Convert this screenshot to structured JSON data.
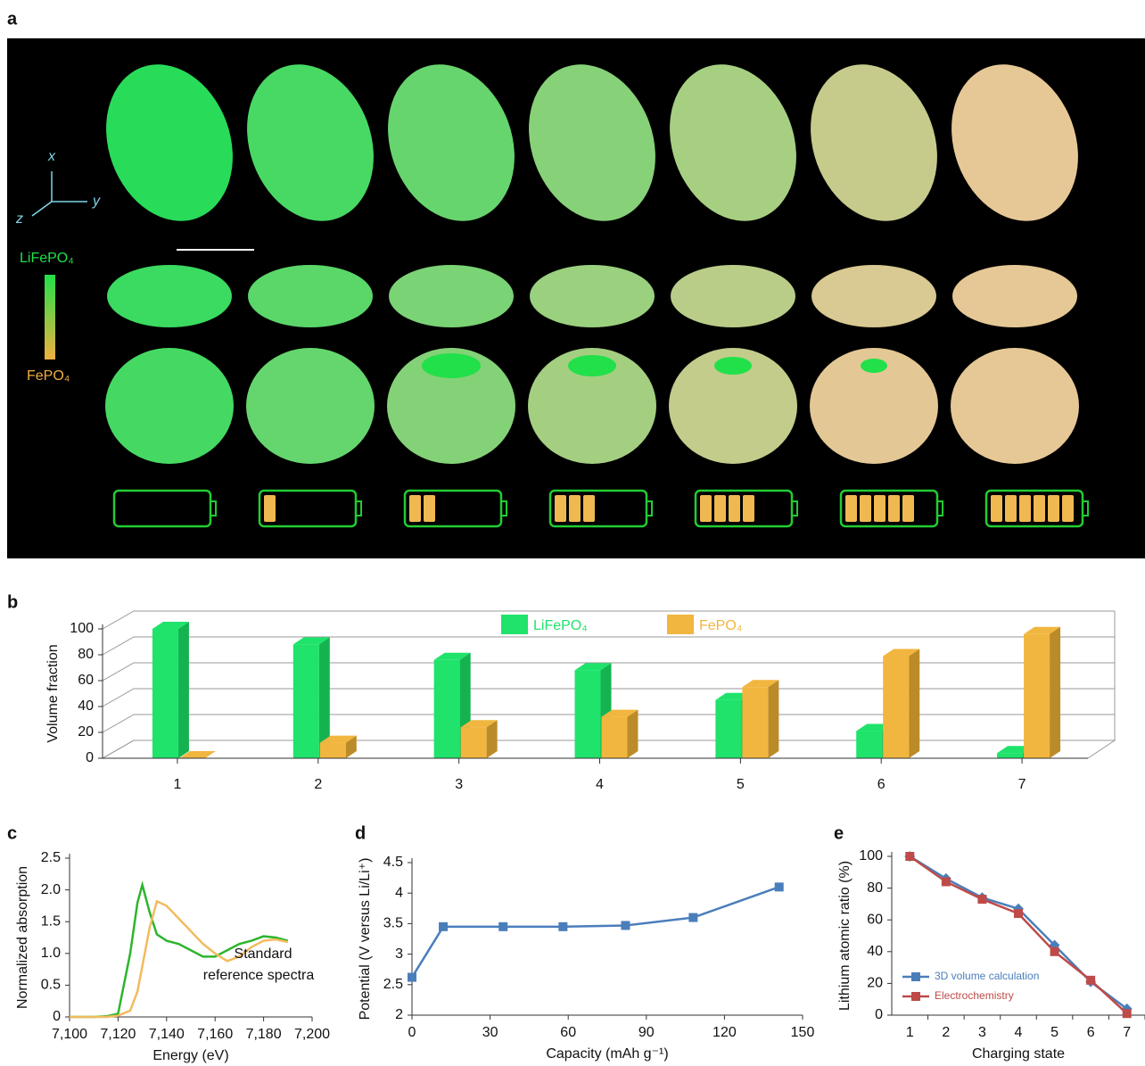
{
  "figure_a": {
    "letter": "a",
    "axis_labels": [
      "x",
      "y",
      "z"
    ],
    "color_bar": {
      "top": "LiFePO₄",
      "bottom": "FePO₄"
    }
  },
  "chart_data": [
    {
      "letter": "b",
      "type": "bar",
      "ylabel": "Volume fraction",
      "categories": [
        "1",
        "2",
        "3",
        "4",
        "5",
        "6",
        "7"
      ],
      "series": [
        {
          "name": "LiFePO₄",
          "color": "#1fe36b",
          "values": [
            100,
            88,
            76,
            68,
            45,
            21,
            4
          ]
        },
        {
          "name": "FePO₄",
          "color": "#f1b63f",
          "values": [
            0,
            12,
            24,
            32,
            55,
            79,
            96
          ]
        }
      ],
      "ylim": [
        0,
        100
      ],
      "yticks": [
        0,
        20,
        40,
        60,
        80,
        100
      ],
      "grid": true,
      "legend": "top"
    },
    {
      "letter": "c",
      "type": "line",
      "xlabel": "Energy (eV)",
      "ylabel": "Normalized absorption",
      "annotation": [
        "Standard",
        "reference spectra"
      ],
      "x": [
        7100,
        7105,
        7110,
        7115,
        7120,
        7125,
        7128,
        7130,
        7133,
        7136,
        7140,
        7145,
        7150,
        7155,
        7160,
        7165,
        7170,
        7175,
        7180,
        7185,
        7190
      ],
      "series": [
        {
          "color": "#2db52d",
          "values": [
            0,
            0,
            0,
            0.01,
            0.05,
            1.0,
            1.8,
            2.08,
            1.65,
            1.3,
            1.2,
            1.15,
            1.05,
            0.95,
            0.95,
            1.05,
            1.15,
            1.2,
            1.27,
            1.25,
            1.2
          ]
        },
        {
          "color": "#f2bb5e",
          "values": [
            0,
            0,
            0,
            0,
            0.02,
            0.1,
            0.4,
            0.8,
            1.4,
            1.82,
            1.75,
            1.55,
            1.35,
            1.15,
            1.0,
            0.88,
            0.95,
            1.1,
            1.2,
            1.22,
            1.18
          ]
        }
      ],
      "xlim": [
        7100,
        7200
      ],
      "xticks": [
        {
          "value": 7100,
          "label": "7,100"
        },
        {
          "value": 7120,
          "label": "7,120"
        },
        {
          "value": 7140,
          "label": "7,140"
        },
        {
          "value": 7160,
          "label": "7,160"
        },
        {
          "value": 7180,
          "label": "7,180"
        },
        {
          "value": 7200,
          "label": "7,200"
        }
      ],
      "ylim": [
        0,
        2.5
      ],
      "yticks": [
        0,
        0.5,
        {
          "value": 1,
          "label": "1.0"
        },
        1.5,
        {
          "value": 2,
          "label": "2.0"
        },
        2.5
      ]
    },
    {
      "letter": "d",
      "type": "line",
      "xlabel": "Capacity (mAh g⁻¹)",
      "ylabel": "Potential (V versus Li/Li⁺)",
      "x": [
        0,
        12,
        35,
        58,
        82,
        108,
        141
      ],
      "series": [
        {
          "color": "#4a7ebb",
          "marker": "square",
          "values": [
            2.62,
            3.45,
            3.45,
            3.45,
            3.47,
            3.6,
            4.1
          ]
        }
      ],
      "xlim": [
        0,
        150
      ],
      "xticks": [
        0,
        30,
        60,
        90,
        120,
        150
      ],
      "ylim": [
        2,
        4.5
      ],
      "yticks": [
        2,
        2.5,
        3,
        3.5,
        4,
        4.5
      ]
    },
    {
      "letter": "e",
      "type": "line",
      "xlabel": "Charging state",
      "ylabel": "Lithium atomic ratio (%)",
      "categories": [
        "1",
        "2",
        "3",
        "4",
        "5",
        "6",
        "7"
      ],
      "series": [
        {
          "name": "3D volume calculation",
          "color": "#4a7ebb",
          "marker": "diamond",
          "values": [
            100,
            86,
            74,
            67,
            44,
            21,
            4
          ]
        },
        {
          "name": "Electrochemistry",
          "color": "#be4b48",
          "marker": "square",
          "values": [
            100,
            84,
            73,
            64,
            40,
            22,
            1
          ]
        }
      ],
      "ylim": [
        0,
        100
      ],
      "yticks": [
        0,
        20,
        40,
        60,
        80,
        100
      ],
      "legend": "lower left"
    }
  ]
}
